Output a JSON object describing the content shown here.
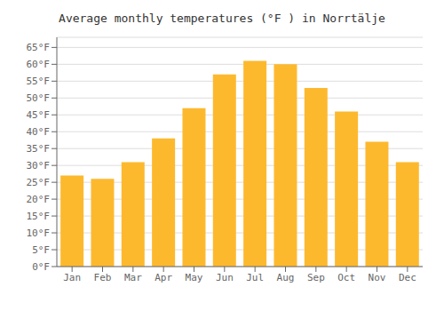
{
  "chart_data": {
    "type": "bar",
    "title": "Average monthly temperatures (°F ) in Norrtälje",
    "categories": [
      "Jan",
      "Feb",
      "Mar",
      "Apr",
      "May",
      "Jun",
      "Jul",
      "Aug",
      "Sep",
      "Oct",
      "Nov",
      "Dec"
    ],
    "values": [
      27,
      26,
      31,
      38,
      47,
      57,
      61,
      60,
      53,
      46,
      37,
      31
    ],
    "color": "#FDB92E",
    "ylim": [
      0,
      68
    ],
    "yticks": [
      {
        "value": 0,
        "label": "0°F"
      },
      {
        "value": 5,
        "label": "5°F"
      },
      {
        "value": 10,
        "label": "10°F"
      },
      {
        "value": 15,
        "label": "15°F"
      },
      {
        "value": 20,
        "label": "20°F"
      },
      {
        "value": 25,
        "label": "25°F"
      },
      {
        "value": 30,
        "label": "30°F"
      },
      {
        "value": 35,
        "label": "35°F"
      },
      {
        "value": 40,
        "label": "40°F"
      },
      {
        "value": 45,
        "label": "45°F"
      },
      {
        "value": 50,
        "label": "50°F"
      },
      {
        "value": 55,
        "label": "55°F"
      },
      {
        "value": 60,
        "label": "60°F"
      },
      {
        "value": 65,
        "label": "65°F"
      }
    ],
    "grid": true
  }
}
